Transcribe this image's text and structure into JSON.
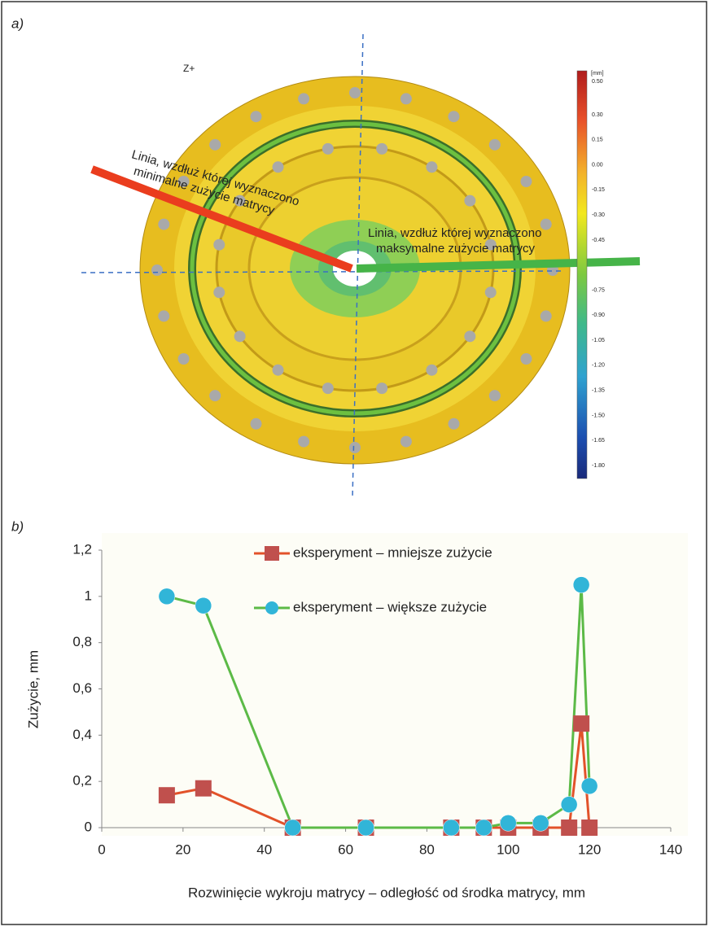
{
  "panel_a": {
    "label": "a)",
    "view_label": "Z+",
    "scale_unit": "[mm]",
    "scale_labels": [
      "0.50",
      "0.30",
      "0.15",
      "0.00",
      "-0.15",
      "-0.30",
      "-0.45",
      "-0.75",
      "-0.90",
      "-1.05",
      "-1.20",
      "-1.35",
      "-1.50",
      "-1.65",
      "-1.80"
    ],
    "min_line_text": [
      "Linia, wzdłuż której wyznaczono",
      "minimalne zużycie matrycy"
    ],
    "max_line_text": [
      "Linia, wzdłuż której wyznaczono",
      "maksymalne zużycie matrycy"
    ]
  },
  "chart_data": {
    "type": "line",
    "panel_label": "b)",
    "x_label": "Rozwinięcie wykroju matrycy – odległość od środka matrycy, mm",
    "y_label": "Zużycie, mm",
    "x": [
      16,
      25,
      47,
      65,
      86,
      94,
      100,
      108,
      115,
      118,
      120
    ],
    "series": [
      {
        "name": "eksperyment – mniejsze zużycie",
        "color": "#e2522a",
        "marker_color": "#c0504d",
        "marker": "square",
        "values": [
          0.14,
          0.17,
          0,
          0,
          0,
          0,
          0,
          0,
          0,
          0.45,
          0
        ]
      },
      {
        "name": "eksperyment – większe zużycie",
        "color": "#5cba47",
        "marker_color": "#31b5d8",
        "marker": "circle",
        "values": [
          1.0,
          0.96,
          0,
          0,
          0,
          0,
          0.02,
          0.02,
          0.1,
          1.05,
          0.18
        ]
      }
    ],
    "xlim": [
      0,
      140
    ],
    "xticks": [
      0,
      20,
      40,
      60,
      80,
      100,
      120,
      140
    ],
    "ylim": [
      0,
      1.2
    ],
    "yticks": [
      0,
      {
        "value": 0.2,
        "label": "0,2"
      },
      {
        "value": 0.4,
        "label": "0,4"
      },
      {
        "value": 0.6,
        "label": "0,6"
      },
      {
        "value": 0.8,
        "label": "0,8"
      },
      1,
      {
        "value": 1.2,
        "label": "1,2"
      }
    ],
    "grid": false,
    "legend": "top"
  }
}
